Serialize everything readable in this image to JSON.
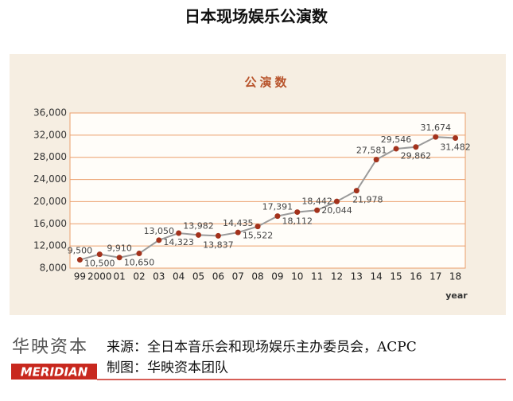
{
  "title": "日本现场娱乐公演数",
  "chart_data": {
    "type": "line",
    "title": "公演数",
    "x_label": "year",
    "categories": [
      "99",
      "2000",
      "01",
      "02",
      "03",
      "04",
      "05",
      "06",
      "07",
      "08",
      "09",
      "10",
      "11",
      "12",
      "13",
      "14",
      "15",
      "16",
      "17",
      "18"
    ],
    "values": [
      9500,
      10500,
      9910,
      10650,
      13050,
      14323,
      13982,
      13837,
      14435,
      15522,
      17391,
      18112,
      18442,
      20044,
      21978,
      27581,
      29546,
      29862,
      31674,
      31482
    ],
    "value_labels": [
      "9,500",
      "10,500",
      "9,910",
      "10,650",
      "13,050",
      "14,323",
      "13,982",
      "13,837",
      "14,435",
      "15,522",
      "17,391",
      "18,112",
      "18,442",
      "20,044",
      "21,978",
      "27,581",
      "29,546",
      "29,862",
      "31,674",
      "31,482"
    ],
    "color": "#9a9a9a",
    "marker_color": "#a3321c",
    "ylim": [
      8000,
      36000
    ],
    "yticks": [
      {
        "value": 8000,
        "label": "8,000"
      },
      {
        "value": 12000,
        "label": "12,000"
      },
      {
        "value": 16000,
        "label": "16,000"
      },
      {
        "value": 20000,
        "label": "20,000"
      },
      {
        "value": 24000,
        "label": "24,000"
      },
      {
        "value": 28000,
        "label": "28,000"
      },
      {
        "value": 32000,
        "label": "32,000"
      },
      {
        "value": 36000,
        "label": "36,000"
      }
    ],
    "grid": true
  },
  "footer": {
    "brand": "华映资本",
    "logo": "MERIDIAN",
    "source": "来源：全日本音乐会和现场娱乐主办委员会，ACPC",
    "credit": "制图：华映资本团队"
  }
}
